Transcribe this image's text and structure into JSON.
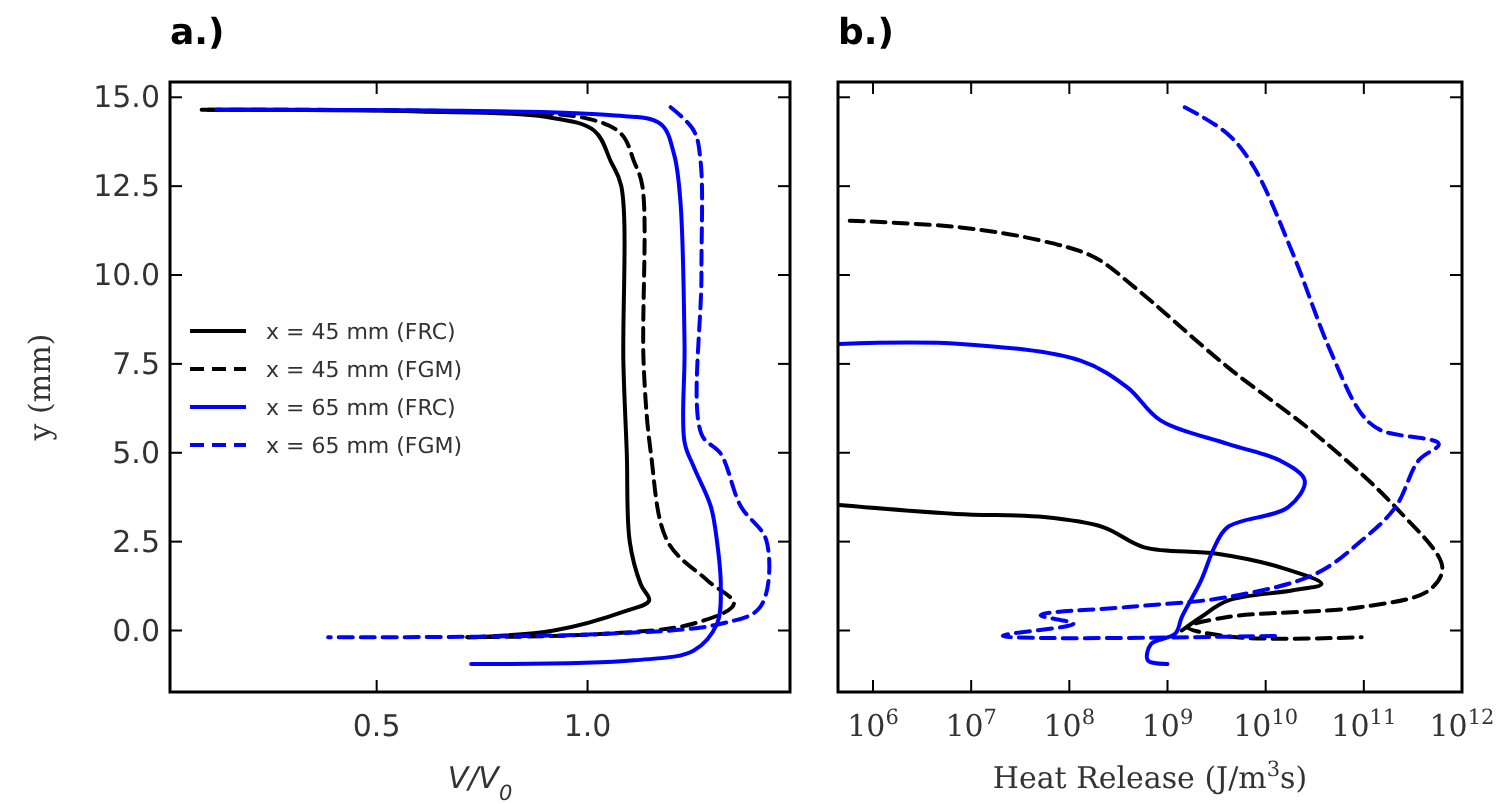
{
  "chart_data": [
    {
      "type": "line",
      "title": "a.)",
      "xlabel": "V/V$_{0}$",
      "ylabel": "y (mm)",
      "xlim": [
        0.01,
        1.48
      ],
      "ylim": [
        -1.73,
        15.43
      ],
      "xticks": [
        0.5,
        {
          "value": 1,
          "label": "1.0"
        }
      ],
      "yticks": [
        {
          "value": 0,
          "label": "0.0"
        },
        2.5,
        {
          "value": 5,
          "label": "5.0"
        },
        7.5,
        {
          "value": 10,
          "label": "10.0"
        },
        12.5,
        {
          "value": 15,
          "label": "15.0"
        }
      ],
      "legend": "left",
      "series": [
        {
          "name": "x = 45 mm (FRC)",
          "color": "#000000",
          "line_style": "solid",
          "x": [
            0.085,
            0.6,
            0.9,
            1.016,
            1.055,
            1.08,
            1.085,
            1.093,
            1.1,
            1.126,
            1.146,
            1.093,
            0.92,
            0.715
          ],
          "values": [
            14.65,
            14.6,
            14.45,
            14.06,
            13.2,
            12.5,
            7.5,
            5,
            2.5,
            1.3,
            0.84,
            0.56,
            0,
            -0.19
          ]
        },
        {
          "name": "x = 45 mm (FGM)",
          "color": "#000000",
          "line_style": "dashed",
          "x": [
            0.1,
            0.7,
            1.0,
            1.08,
            1.11,
            1.13,
            1.133,
            1.15,
            1.19,
            1.284,
            1.347,
            1.25,
            1.03,
            0.715
          ],
          "values": [
            14.65,
            14.6,
            14.4,
            13.97,
            13.2,
            12.5,
            7.5,
            5,
            2.5,
            1.41,
            0.75,
            0.19,
            -0.1,
            -0.19
          ]
        },
        {
          "name": "x = 65 mm (FRC)",
          "color": "#0000ff",
          "line_style": "solid",
          "x": [
            0.12,
            0.7,
            1.05,
            1.173,
            1.205,
            1.22,
            1.23,
            1.23,
            1.252,
            1.292,
            1.307,
            1.316,
            1.307,
            1.252,
            1.11,
            0.724
          ],
          "values": [
            14.65,
            14.62,
            14.5,
            14.25,
            13.4,
            12.1,
            8,
            5.3,
            4.6,
            3.5,
            2.5,
            1.22,
            0.19,
            -0.56,
            -0.84,
            -0.94
          ]
        },
        {
          "name": "x = 65 mm (FGM)",
          "color": "#0000ff",
          "line_style": "dashed",
          "x": [
            1.197,
            1.252,
            1.268,
            1.27,
            1.27,
            1.316,
            1.363,
            1.424,
            1.41,
            1.316,
            1.03,
            0.385
          ],
          "values": [
            14.72,
            14.06,
            13.2,
            10,
            5.53,
            4.97,
            3.5,
            2.53,
            0.67,
            0.19,
            -0.1,
            -0.19
          ]
        }
      ]
    },
    {
      "type": "line",
      "title": "b.)",
      "xlabel": "Heat Release (J/m$^{3}$s)",
      "log": "x",
      "xlim": [
        440000,
        1000000000000
      ],
      "ylim": [
        -1.73,
        15.43
      ],
      "xticks": [
        {
          "value": 1000000,
          "label": "10$^{6}$"
        },
        {
          "value": 10000000,
          "label": "10$^{7}$"
        },
        {
          "value": 100000000,
          "label": "10$^{8}$"
        },
        {
          "value": 1000000000,
          "label": "10$^{9}$"
        },
        {
          "value": 10000000000,
          "label": "10$^{10}$"
        },
        {
          "value": 100000000000,
          "label": "10$^{11}$"
        },
        {
          "value": 1000000000000,
          "label": "10$^{12}$"
        }
      ],
      "yticks": [
        0,
        2.5,
        5,
        7.5,
        10,
        12.5,
        15
      ],
      "tick_labels": "x",
      "series": [
        {
          "color": "#000000",
          "line_style": "solid",
          "x": [
            450000,
            7000000,
            55000000,
            220000000,
            580000000,
            3200000000,
            14000000000,
            37000000000,
            19000000000,
            4100000000,
            2200000000,
            1400000000
          ],
          "values": [
            3.53,
            3.28,
            3.19,
            2.91,
            2.34,
            2.16,
            1.78,
            1.31,
            1.13,
            0.84,
            0.38,
            0
          ]
        },
        {
          "color": "#000000",
          "line_style": "dashed",
          "x": [
            580000,
            7800000,
            51000000,
            180000000,
            460000000,
            4100000000,
            32000000000,
            210000000000,
            630000000000,
            460000000000,
            95000000000,
            4100000000,
            1600000000,
            5000000000,
            95000000000
          ],
          "values": [
            11.53,
            11.34,
            10.97,
            10.5,
            9.66,
            7.41,
            5.53,
            3.47,
            1.78,
            1.13,
            0.66,
            0.38,
            0.09,
            -0.19,
            -0.19
          ]
        },
        {
          "color": "#0000ff",
          "line_style": "solid",
          "x": [
            450000,
            7800000,
            130000000,
            390000000,
            850000000,
            4100000000,
            14000000000,
            25000000000,
            17000000000,
            4100000000,
            3000000000,
            2200000000,
            1400000000,
            1200000000,
            680000000,
            630000000,
            1000000000
          ],
          "values": [
            8.06,
            8.06,
            7.59,
            6.84,
            5.91,
            5.25,
            4.78,
            4.22,
            3.47,
            2.91,
            2.34,
            1.41,
            0.38,
            -0.09,
            -0.38,
            -0.84,
            -0.94
          ]
        },
        {
          "color": "#0000ff",
          "line_style": "dashed",
          "x": [
            1500000000,
            4100000000,
            7600000000,
            19000000000,
            44000000000,
            95000000000,
            150000000000,
            580000000000,
            360000000000,
            210000000000,
            95000000000,
            32000000000,
            4100000000,
            390000000,
            51000000,
            110000000,
            21000000,
            14000000000
          ],
          "values": [
            14.72,
            13.97,
            13.03,
            10.59,
            7.97,
            6.09,
            5.63,
            5.25,
            4.78,
            3.47,
            2.53,
            1.59,
            0.94,
            0.66,
            0.43,
            0.19,
            -0.15,
            -0.15
          ]
        }
      ]
    }
  ]
}
